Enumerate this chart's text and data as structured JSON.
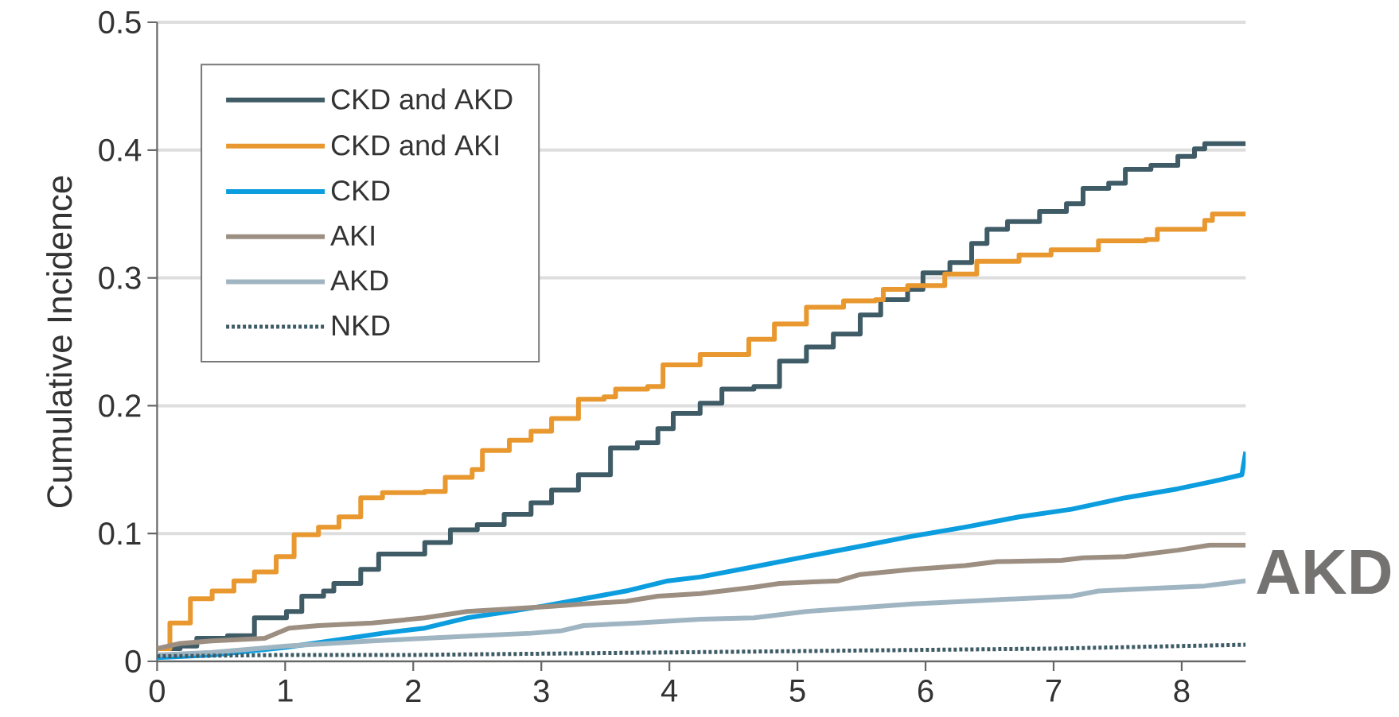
{
  "chart_data": {
    "type": "step",
    "title": "AKD",
    "ylabel": "Cumulative Incidence",
    "xlim": [
      0,
      8.5
    ],
    "ylim": [
      0,
      0.5
    ],
    "xticks": [
      0,
      1,
      2,
      3,
      4,
      5,
      6,
      7,
      8
    ],
    "yticks": [
      0,
      0.1,
      0.2,
      0.3,
      0.4,
      0.5
    ],
    "grid": "y",
    "legend": "top left",
    "line_style": "solid",
    "series": [
      {
        "name": "CKD and AKD",
        "color": "#3e5b66",
        "x": [
          0,
          0.18,
          0.31,
          0.55,
          0.76,
          1.01,
          1.13,
          1.3,
          1.38,
          1.59,
          1.73,
          1.92,
          2.09,
          2.29,
          2.5,
          2.71,
          2.92,
          3.08,
          3.29,
          3.54,
          3.75,
          3.91,
          4.03,
          4.24,
          4.41,
          4.66,
          4.86,
          5.07,
          5.28,
          5.49,
          5.65,
          5.86,
          5.98,
          6.19,
          6.36,
          6.48,
          6.64,
          6.89,
          7.1,
          7.23,
          7.43,
          7.56,
          7.76,
          7.97,
          8.1,
          8.18,
          8.5
        ],
        "values": [
          0.01,
          0.012,
          0.018,
          0.02,
          0.034,
          0.039,
          0.051,
          0.055,
          0.061,
          0.072,
          0.084,
          0.084,
          0.093,
          0.103,
          0.107,
          0.115,
          0.124,
          0.134,
          0.146,
          0.167,
          0.171,
          0.182,
          0.194,
          0.202,
          0.213,
          0.215,
          0.235,
          0.246,
          0.256,
          0.271,
          0.283,
          0.291,
          0.304,
          0.312,
          0.327,
          0.338,
          0.344,
          0.352,
          0.358,
          0.37,
          0.374,
          0.385,
          0.388,
          0.395,
          0.401,
          0.405,
          0.405
        ]
      },
      {
        "name": "CKD and AKI",
        "color": "#e8982f",
        "x": [
          0,
          0.1,
          0.26,
          0.43,
          0.6,
          0.76,
          0.93,
          1.07,
          1.26,
          1.42,
          1.59,
          1.76,
          2.09,
          2.25,
          2.46,
          2.54,
          2.75,
          2.92,
          3.08,
          3.29,
          3.49,
          3.58,
          3.83,
          3.95,
          4.24,
          4.62,
          4.82,
          5.07,
          5.36,
          5.61,
          5.67,
          5.86,
          6.15,
          6.4,
          6.73,
          6.98,
          7.35,
          7.72,
          7.81,
          8.18,
          8.24,
          8.5
        ],
        "values": [
          0.01,
          0.03,
          0.049,
          0.055,
          0.063,
          0.07,
          0.082,
          0.099,
          0.105,
          0.113,
          0.128,
          0.132,
          0.133,
          0.144,
          0.15,
          0.165,
          0.173,
          0.18,
          0.19,
          0.205,
          0.207,
          0.213,
          0.215,
          0.232,
          0.24,
          0.252,
          0.264,
          0.277,
          0.282,
          0.283,
          0.291,
          0.294,
          0.303,
          0.313,
          0.318,
          0.322,
          0.329,
          0.33,
          0.338,
          0.345,
          0.35,
          0.35
        ]
      },
      {
        "name": "CKD",
        "color": "#0c9ddf",
        "type": "line",
        "x": [
          0,
          0.43,
          1.01,
          1.42,
          1.76,
          2.09,
          2.42,
          2.75,
          3.0,
          3.33,
          3.66,
          3.99,
          4.24,
          4.66,
          5.07,
          5.49,
          5.9,
          6.31,
          6.73,
          7.14,
          7.56,
          7.97,
          8.3,
          8.47,
          8.5
        ],
        "values": [
          0.003,
          0.005,
          0.011,
          0.017,
          0.022,
          0.026,
          0.034,
          0.039,
          0.043,
          0.049,
          0.055,
          0.063,
          0.066,
          0.074,
          0.082,
          0.09,
          0.098,
          0.105,
          0.113,
          0.119,
          0.128,
          0.135,
          0.142,
          0.146,
          0.164
        ]
      },
      {
        "name": "AKI",
        "color": "#9c8f82",
        "type": "line",
        "x": [
          0,
          0.18,
          0.43,
          0.84,
          1.03,
          1.26,
          1.68,
          2.09,
          2.42,
          2.75,
          3.08,
          3.33,
          3.66,
          3.91,
          4.24,
          4.66,
          4.86,
          5.32,
          5.49,
          5.9,
          6.31,
          6.56,
          7.06,
          7.23,
          7.56,
          7.97,
          8.22,
          8.5
        ],
        "values": [
          0.01,
          0.014,
          0.016,
          0.018,
          0.026,
          0.028,
          0.03,
          0.034,
          0.039,
          0.041,
          0.043,
          0.045,
          0.047,
          0.051,
          0.053,
          0.058,
          0.061,
          0.063,
          0.068,
          0.072,
          0.075,
          0.078,
          0.079,
          0.081,
          0.082,
          0.087,
          0.091,
          0.091
        ]
      },
      {
        "name": "AKD",
        "color": "#a0b5c2",
        "type": "line",
        "x": [
          0,
          0.43,
          1.01,
          1.68,
          2.09,
          2.5,
          2.92,
          3.16,
          3.33,
          3.75,
          4.24,
          4.66,
          5.07,
          5.49,
          5.9,
          6.31,
          6.73,
          7.14,
          7.35,
          7.76,
          8.18,
          8.5
        ],
        "values": [
          0.005,
          0.007,
          0.012,
          0.016,
          0.018,
          0.02,
          0.022,
          0.024,
          0.028,
          0.03,
          0.033,
          0.034,
          0.039,
          0.042,
          0.045,
          0.047,
          0.049,
          0.051,
          0.055,
          0.057,
          0.059,
          0.063
        ]
      },
      {
        "name": "NKD",
        "color": "#3e5b66",
        "type": "line",
        "line_style": "dotted",
        "x": [
          0,
          1,
          2,
          3,
          4,
          5,
          6,
          7,
          8,
          8.5
        ],
        "values": [
          0.004,
          0.005,
          0.005,
          0.006,
          0.007,
          0.008,
          0.009,
          0.01,
          0.012,
          0.013
        ]
      }
    ]
  }
}
